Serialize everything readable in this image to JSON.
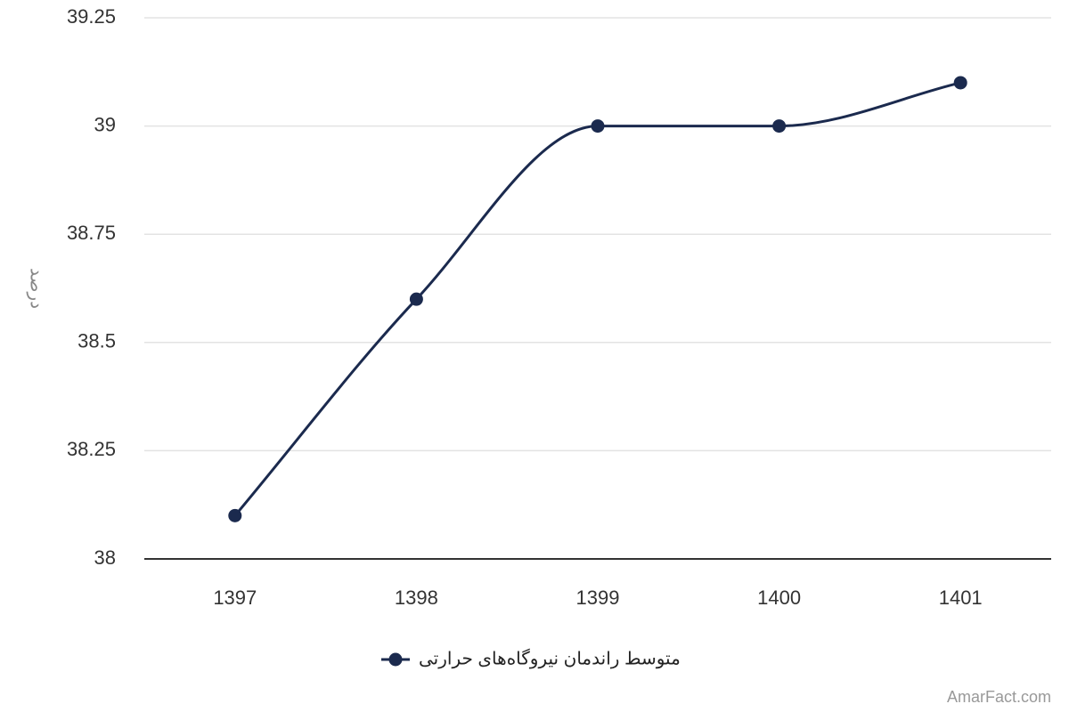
{
  "chart_data": {
    "type": "line",
    "y_axis_label": "درصد",
    "categories": [
      "1397",
      "1398",
      "1399",
      "1400",
      "1401"
    ],
    "series": [
      {
        "name": "متوسط راندمان نیروگاه‌های حرارتی",
        "color": "#1b2a4e",
        "values": [
          38.1,
          38.6,
          39,
          39,
          39.1
        ]
      }
    ],
    "ylim": [
      38,
      39.25
    ],
    "yticks": [
      38,
      38.25,
      38.5,
      38.75,
      39,
      39.25
    ],
    "grid": true,
    "legend": "bottom",
    "watermark": "AmarFact.com"
  }
}
